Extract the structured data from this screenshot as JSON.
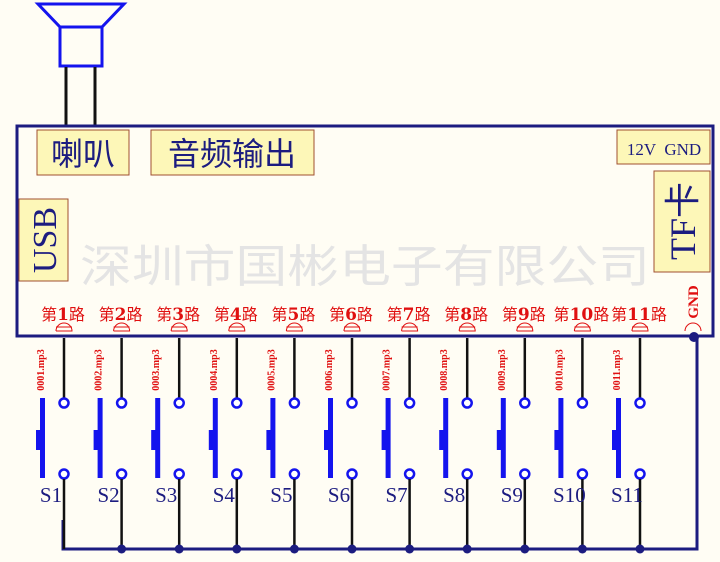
{
  "labels": {
    "speaker": "喇叭",
    "audio_output": "音频输出",
    "usb": "USB",
    "power": "12V  GND",
    "tf_card": "TF卡",
    "gnd": "GND",
    "watermark": "深圳市国彬电子有限公司"
  },
  "channel_prefix": "第",
  "channel_suffix": "路",
  "channels": [
    {
      "number": "1",
      "file": "0001.mp3",
      "switch": "S1"
    },
    {
      "number": "2",
      "file": "0002.mp3",
      "switch": "S2"
    },
    {
      "number": "3",
      "file": "0003.mp3",
      "switch": "S3"
    },
    {
      "number": "4",
      "file": "0004.mp3",
      "switch": "S4"
    },
    {
      "number": "5",
      "file": "0005.mp3",
      "switch": "S5"
    },
    {
      "number": "6",
      "file": "0006.mp3",
      "switch": "S6"
    },
    {
      "number": "7",
      "file": "0007.mp3",
      "switch": "S7"
    },
    {
      "number": "8",
      "file": "0008.mp3",
      "switch": "S8"
    },
    {
      "number": "9",
      "file": "0009.mp3",
      "switch": "S9"
    },
    {
      "number": "10",
      "file": "0010.mp3",
      "switch": "S10"
    },
    {
      "number": "11",
      "file": "0011.mp3",
      "switch": "S11"
    }
  ],
  "colors": {
    "board": "#1c1c80",
    "switch": "#1414ee",
    "wire": "#111111",
    "label_red": "#e01010",
    "label_box": "#fdf7b8",
    "label_box_border": "#a05030",
    "watermark": "#e4e4e4"
  }
}
